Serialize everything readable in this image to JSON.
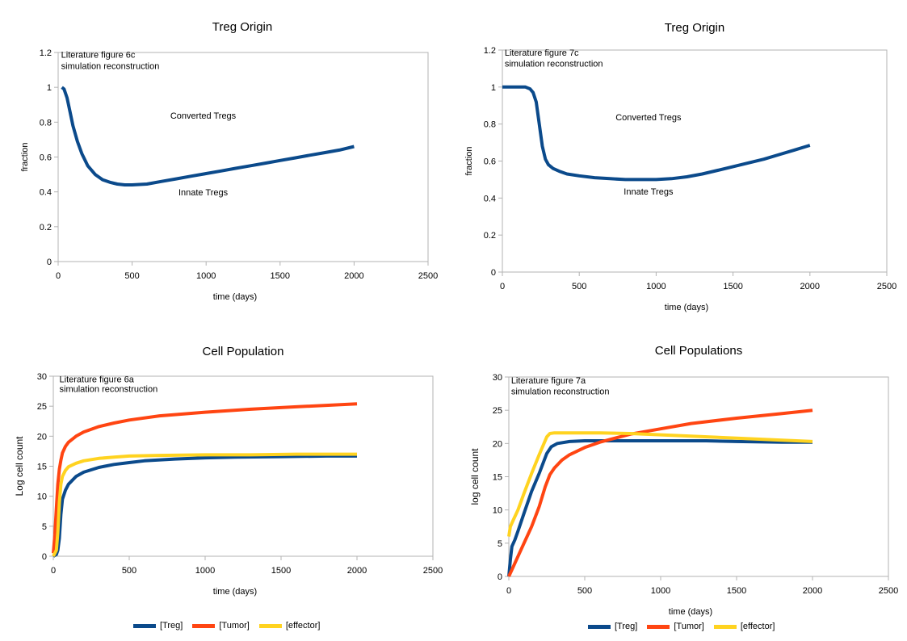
{
  "colors": {
    "treg": "#0b4a8b",
    "tumor": "#ff4512",
    "effector": "#ffd320",
    "single": "#0b4a8b"
  },
  "legend_items": [
    {
      "label": "[Treg]",
      "color": "#0b4a8b"
    },
    {
      "label": "[Tumor]",
      "color": "#ff4512"
    },
    {
      "label": "[effector]",
      "color": "#ffd320"
    }
  ],
  "chart_data": [
    {
      "type": "line",
      "title": "Treg Origin",
      "xlabel": "time (days)",
      "ylabel": "fraction",
      "xlim": [
        0,
        2500
      ],
      "ylim": [
        0,
        1.2
      ],
      "xticks": [
        0,
        500,
        1000,
        1500,
        2000,
        2500
      ],
      "yticks": [
        0,
        0.2,
        0.4,
        0.6,
        0.8,
        1,
        1.2
      ],
      "grid": false,
      "annotations": [
        {
          "text": "Literature figure 6c",
          "x": 20,
          "y": 1.17
        },
        {
          "text": "simulation reconstruction",
          "x": 20,
          "y": 1.105
        },
        {
          "text": "Converted Tregs",
          "x": 980,
          "y": 0.82
        },
        {
          "text": "Innate Tregs",
          "x": 980,
          "y": 0.38
        }
      ],
      "series": [
        {
          "x": [
            25,
            40,
            60,
            80,
            100,
            130,
            160,
            200,
            250,
            300,
            350,
            400,
            450,
            500,
            600,
            700,
            800,
            900,
            1000,
            1100,
            1200,
            1300,
            1400,
            1500,
            1600,
            1700,
            1800,
            1900,
            2000
          ],
          "y": [
            1.0,
            0.99,
            0.94,
            0.86,
            0.78,
            0.69,
            0.62,
            0.55,
            0.5,
            0.47,
            0.455,
            0.445,
            0.44,
            0.44,
            0.445,
            0.46,
            0.475,
            0.49,
            0.505,
            0.52,
            0.535,
            0.55,
            0.565,
            0.58,
            0.595,
            0.61,
            0.625,
            0.64,
            0.66
          ],
          "color": "#0b4a8b"
        }
      ]
    },
    {
      "type": "line",
      "title": "Treg Origin",
      "xlabel": "time (days)",
      "ylabel": "fraction",
      "xlim": [
        0,
        2500
      ],
      "ylim": [
        0,
        1.2
      ],
      "xticks": [
        0,
        500,
        1000,
        1500,
        2000,
        2500
      ],
      "yticks": [
        0,
        0.2,
        0.4,
        0.6,
        0.8,
        1,
        1.2
      ],
      "grid": false,
      "annotations": [
        {
          "text": "Literature figure 7c",
          "x": 15,
          "y": 1.17
        },
        {
          "text": "simulation reconstruction",
          "x": 15,
          "y": 1.11
        },
        {
          "text": "Converted Tregs",
          "x": 950,
          "y": 0.82
        },
        {
          "text": "Innate Tregs",
          "x": 950,
          "y": 0.42
        }
      ],
      "series": [
        {
          "x": [
            0,
            100,
            150,
            180,
            200,
            220,
            240,
            260,
            280,
            300,
            330,
            370,
            420,
            500,
            600,
            700,
            800,
            900,
            1000,
            1100,
            1200,
            1300,
            1400,
            1500,
            1600,
            1700,
            1800,
            1900,
            2000
          ],
          "y": [
            1.0,
            1.0,
            1.0,
            0.99,
            0.97,
            0.92,
            0.8,
            0.68,
            0.61,
            0.58,
            0.56,
            0.545,
            0.53,
            0.52,
            0.51,
            0.505,
            0.5,
            0.5,
            0.5,
            0.505,
            0.515,
            0.53,
            0.55,
            0.57,
            0.59,
            0.61,
            0.635,
            0.66,
            0.685
          ],
          "color": "#0b4a8b"
        }
      ]
    },
    {
      "type": "line",
      "title": "Cell Population",
      "xlabel": "time (days)",
      "ylabel": "Log cell count",
      "xlim": [
        0,
        2500
      ],
      "ylim": [
        0,
        30
      ],
      "xticks": [
        0,
        500,
        1000,
        1500,
        2000,
        2500
      ],
      "yticks": [
        0,
        5,
        10,
        15,
        20,
        25,
        30
      ],
      "grid": false,
      "legend": "bottom",
      "annotations": [
        {
          "text": "Literature figure 6a",
          "x": 40,
          "y": 29
        },
        {
          "text": "simulation reconstruction",
          "x": 40,
          "y": 27.4
        }
      ],
      "series": [
        {
          "name": "[Treg]",
          "x": [
            0,
            20,
            30,
            40,
            50,
            60,
            80,
            100,
            150,
            200,
            300,
            400,
            500,
            600,
            800,
            1000,
            1200,
            1500,
            1800,
            2000
          ],
          "y": [
            0,
            0.3,
            1.0,
            3.0,
            7.0,
            9.5,
            11.0,
            12.0,
            13.3,
            14.0,
            14.8,
            15.3,
            15.6,
            15.9,
            16.2,
            16.4,
            16.5,
            16.6,
            16.7,
            16.7
          ],
          "color": "#0b4a8b"
        },
        {
          "name": "[Tumor]",
          "x": [
            0,
            10,
            20,
            30,
            40,
            50,
            60,
            80,
            100,
            150,
            200,
            300,
            400,
            500,
            700,
            1000,
            1300,
            1600,
            2000
          ],
          "y": [
            0.5,
            3.5,
            8.0,
            12.0,
            14.5,
            16.0,
            17.2,
            18.3,
            19.0,
            20.0,
            20.7,
            21.6,
            22.2,
            22.7,
            23.4,
            24.0,
            24.5,
            24.9,
            25.4
          ],
          "color": "#ff4512"
        },
        {
          "name": "[effector]",
          "x": [
            0,
            20,
            30,
            40,
            50,
            60,
            80,
            100,
            150,
            200,
            300,
            400,
            500,
            700,
            1000,
            1300,
            1600,
            2000
          ],
          "y": [
            0,
            1.0,
            4.0,
            9.0,
            12.0,
            13.3,
            14.3,
            14.9,
            15.5,
            15.9,
            16.3,
            16.5,
            16.7,
            16.8,
            16.9,
            16.9,
            17.0,
            17.0
          ],
          "color": "#ffd320"
        }
      ]
    },
    {
      "type": "line",
      "title": "Cell Populations",
      "xlabel": "time (days)",
      "ylabel": "log cell count",
      "xlim": [
        0,
        2500
      ],
      "ylim": [
        0,
        30
      ],
      "xticks": [
        0,
        500,
        1000,
        1500,
        2000,
        2500
      ],
      "yticks": [
        0,
        5,
        10,
        15,
        20,
        25,
        30
      ],
      "grid": false,
      "legend": "bottom",
      "annotations": [
        {
          "text": "Literature figure 7a",
          "x": 15,
          "y": 29
        },
        {
          "text": "simulation reconstruction",
          "x": 15,
          "y": 27.4
        }
      ],
      "series": [
        {
          "name": "[Treg]",
          "x": [
            0,
            10,
            20,
            40,
            60,
            100,
            150,
            200,
            250,
            280,
            320,
            400,
            500,
            700,
            1000,
            1300,
            1500,
            1800,
            2000
          ],
          "y": [
            0,
            2.5,
            4.5,
            5.5,
            6.8,
            9.5,
            12.8,
            15.5,
            18.5,
            19.5,
            20.0,
            20.3,
            20.4,
            20.4,
            20.4,
            20.4,
            20.3,
            20.2,
            20.2
          ],
          "color": "#0b4a8b"
        },
        {
          "name": "[Tumor]",
          "x": [
            0,
            20,
            50,
            100,
            150,
            200,
            240,
            270,
            300,
            350,
            400,
            500,
            600,
            700,
            800,
            1000,
            1200,
            1500,
            1800,
            2000
          ],
          "y": [
            0,
            1.0,
            2.5,
            5.0,
            7.5,
            10.5,
            13.5,
            15.3,
            16.3,
            17.5,
            18.3,
            19.4,
            20.2,
            20.8,
            21.4,
            22.2,
            23.0,
            23.8,
            24.5,
            25.0
          ],
          "color": "#ff4512"
        },
        {
          "name": "[effector]",
          "x": [
            0,
            10,
            30,
            60,
            100,
            150,
            200,
            250,
            270,
            300,
            400,
            600,
            800,
            1000,
            1200,
            1500,
            1800,
            2000
          ],
          "y": [
            6.0,
            7.5,
            8.5,
            10.0,
            12.5,
            15.5,
            18.3,
            21.0,
            21.5,
            21.6,
            21.6,
            21.6,
            21.5,
            21.3,
            21.1,
            20.8,
            20.5,
            20.3
          ],
          "color": "#ffd320"
        }
      ]
    }
  ]
}
